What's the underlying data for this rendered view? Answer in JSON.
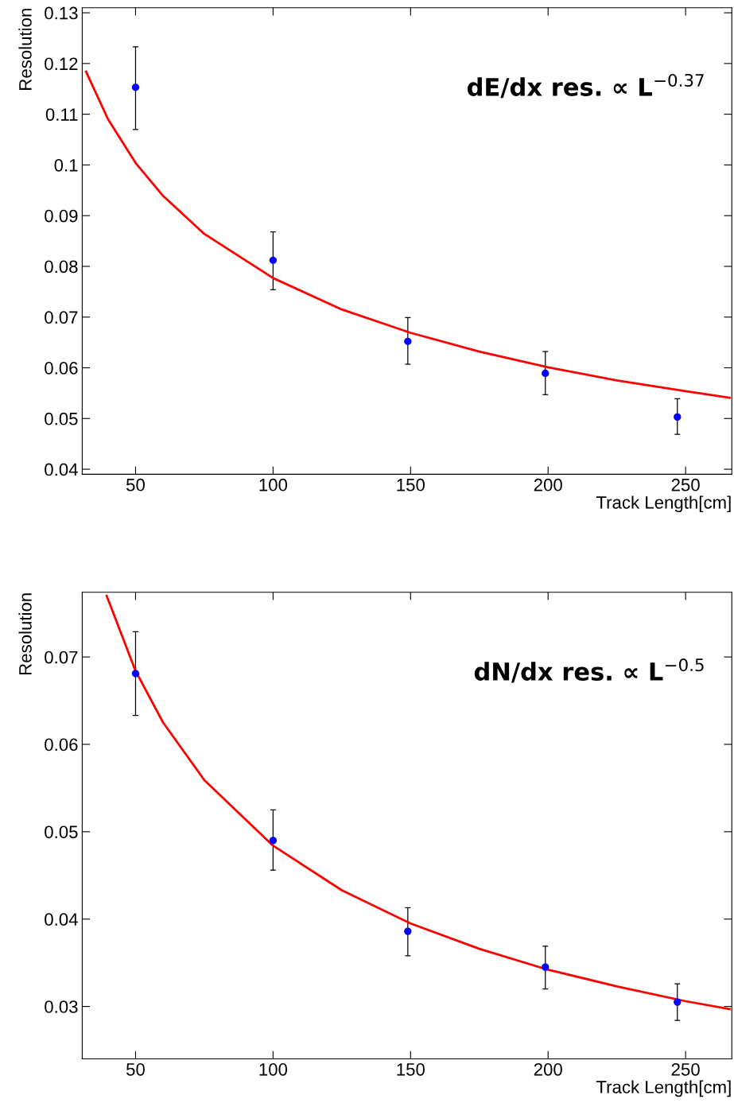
{
  "chart_data": [
    {
      "type": "scatter",
      "xlabel": "Track Length[cm]",
      "ylabel": "Resolution",
      "annotations": [
        "dE/dx res. ∝ L$^{−0.37}$"
      ],
      "xlim": [
        30.6,
        266.8
      ],
      "ylim": [
        0.039,
        0.131
      ],
      "xticks": [
        50,
        100,
        150,
        200,
        250
      ],
      "yticks": [
        0.04,
        0.05,
        0.06,
        0.07,
        0.08,
        0.09,
        0.1,
        0.11,
        0.12,
        0.13
      ],
      "grid": false,
      "legend": false,
      "series": [
        {
          "marker": "circle",
          "color": "#0000ff",
          "x": [
            50,
            100,
            149,
            199,
            247
          ],
          "values": [
            0.1153,
            0.0812,
            0.0652,
            0.0589,
            0.0503
          ],
          "errors": [
            [
              0.107,
              0.1233
            ],
            [
              0.0754,
              0.0868
            ],
            [
              0.0607,
              0.0699
            ],
            [
              0.0547,
              0.0632
            ],
            [
              0.0469,
              0.0539
            ]
          ]
        },
        {
          "type": "line",
          "color": "#ff0000",
          "x": [
            32,
            40,
            50,
            60,
            75,
            100,
            125,
            150,
            175,
            200,
            225,
            250,
            266
          ],
          "values": [
            0.1184,
            0.109,
            0.1004,
            0.0939,
            0.0864,
            0.0777,
            0.0715,
            0.0669,
            0.0632,
            0.0601,
            0.0575,
            0.0554,
            0.0541
          ]
        }
      ]
    },
    {
      "type": "scatter",
      "xlabel": "Track Length[cm]",
      "ylabel": "Resolution",
      "annotations": [
        "dN/dx res. ∝ L$^{−0.5}$"
      ],
      "xlim": [
        30.6,
        266.8
      ],
      "ylim": [
        0.024,
        0.0774
      ],
      "xticks": [
        50,
        100,
        150,
        200,
        250
      ],
      "yticks": [
        0.03,
        0.04,
        0.05,
        0.06,
        0.07
      ],
      "grid": false,
      "legend": false,
      "series": [
        {
          "marker": "circle",
          "color": "#0000ff",
          "x": [
            50,
            100,
            149,
            199,
            247
          ],
          "values": [
            0.0681,
            0.049,
            0.0386,
            0.0345,
            0.0305
          ],
          "errors": [
            [
              0.0633,
              0.0729
            ],
            [
              0.0456,
              0.0525
            ],
            [
              0.0358,
              0.0413
            ],
            [
              0.032,
              0.0369
            ],
            [
              0.0284,
              0.0326
            ]
          ]
        },
        {
          "type": "line",
          "color": "#ff0000",
          "x": [
            39.5,
            50,
            60,
            75,
            100,
            125,
            150,
            175,
            200,
            225,
            250,
            266
          ],
          "values": [
            0.077,
            0.0684,
            0.0625,
            0.0559,
            0.0484,
            0.0433,
            0.0395,
            0.0366,
            0.0342,
            0.0323,
            0.0306,
            0.0297
          ]
        }
      ]
    }
  ]
}
